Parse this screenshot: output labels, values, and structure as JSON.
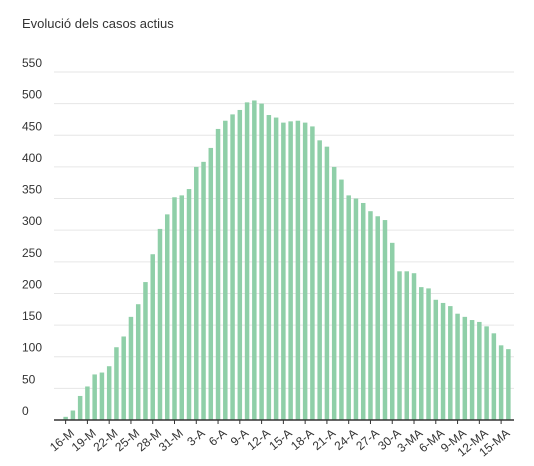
{
  "chart_data": {
    "type": "bar",
    "title": "Evolució dels casos actius",
    "xlabel": "",
    "ylabel": "",
    "ylim": [
      0,
      550
    ],
    "yticks": [
      0,
      50,
      100,
      150,
      200,
      250,
      300,
      350,
      400,
      450,
      500,
      550
    ],
    "grid": true,
    "legend": "none",
    "bar_color": "#8fcfa8",
    "grid_color": "#e6e6e6",
    "axis_color": "#333333",
    "categories": [
      "16-M",
      "17-M",
      "18-M",
      "19-M",
      "20-M",
      "21-M",
      "22-M",
      "23-M",
      "24-M",
      "25-M",
      "26-M",
      "27-M",
      "28-M",
      "29-M",
      "30-M",
      "31-M",
      "1-A",
      "2-A",
      "3-A",
      "4-A",
      "5-A",
      "6-A",
      "7-A",
      "8-A",
      "9-A",
      "10-A",
      "11-A",
      "12-A",
      "13-A",
      "14-A",
      "15-A",
      "16-A",
      "17-A",
      "18-A",
      "19-A",
      "20-A",
      "21-A",
      "22-A",
      "23-A",
      "24-A",
      "25-A",
      "26-A",
      "27-A",
      "28-A",
      "29-A",
      "30-A",
      "1-MA",
      "2-MA",
      "3-MA",
      "4-MA",
      "5-MA",
      "6-MA",
      "7-MA",
      "8-MA",
      "9-MA",
      "10-MA",
      "11-MA",
      "12-MA",
      "13-MA",
      "14-MA",
      "15-MA",
      "16-MA"
    ],
    "tick_labels": [
      "16-M",
      "19-M",
      "22-M",
      "25-M",
      "28-M",
      "31-M",
      "3-A",
      "6-A",
      "9-A",
      "12-A",
      "15-A",
      "18-A",
      "21-A",
      "24-A",
      "27-A",
      "30-A",
      "3-MA",
      "6-MA",
      "9-MA",
      "12-MA",
      "15-MA"
    ],
    "values": [
      5,
      15,
      38,
      53,
      72,
      75,
      85,
      115,
      132,
      163,
      183,
      218,
      262,
      302,
      325,
      352,
      355,
      365,
      400,
      408,
      430,
      460,
      473,
      483,
      490,
      502,
      505,
      500,
      482,
      478,
      470,
      472,
      473,
      470,
      464,
      442,
      432,
      400,
      380,
      355,
      350,
      343,
      330,
      322,
      316,
      280,
      235,
      235,
      232,
      210,
      208,
      190,
      185,
      180,
      168,
      163,
      158,
      155,
      148,
      137,
      118,
      112
    ]
  }
}
